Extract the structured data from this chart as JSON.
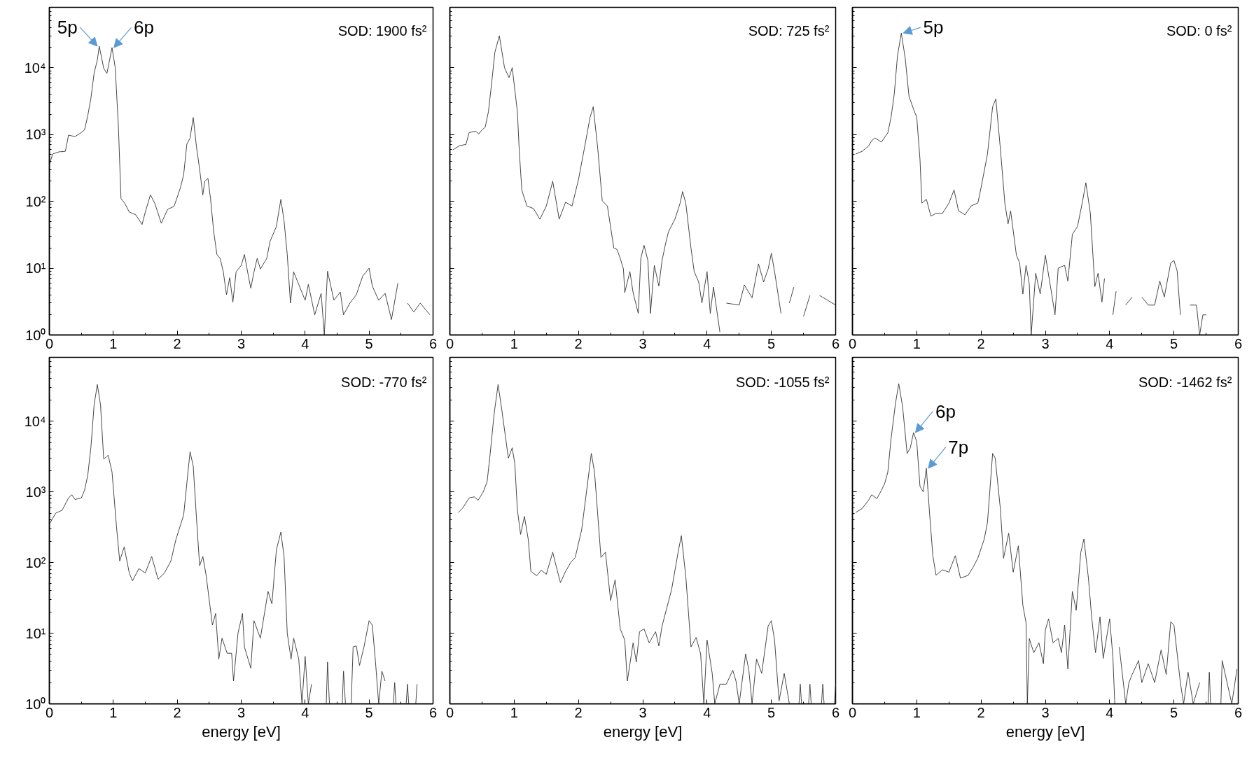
{
  "chart_data": [
    {
      "type": "line",
      "color": "#333333",
      "xlim": [
        0,
        6
      ],
      "ylim": [
        1,
        80000
      ],
      "log": "y",
      "xticks": [
        0,
        1,
        2,
        3,
        4,
        5,
        6
      ],
      "yticks": [
        {
          "value": 1,
          "label": "10⁰"
        },
        {
          "value": 10,
          "label": "10¹"
        },
        {
          "value": 100,
          "label": "10²"
        },
        {
          "value": 1000,
          "label": "10³"
        },
        {
          "value": 10000,
          "label": "10⁴"
        }
      ],
      "annotations": [
        "SOD: 1900 fs²",
        {
          "text": "5p",
          "x": 0.78,
          "y": 21000
        },
        {
          "text": "6p",
          "x": 0.98,
          "y": 20000
        }
      ],
      "x": [
        0,
        0.05,
        0.15,
        0.25,
        0.3,
        0.4,
        0.5,
        0.55,
        0.6,
        0.65,
        0.7,
        0.75,
        0.78,
        0.85,
        0.9,
        0.98,
        1.03,
        1.08,
        1.12,
        1.18,
        1.25,
        1.35,
        1.45,
        1.5,
        1.58,
        1.65,
        1.75,
        1.85,
        1.95,
        2.05,
        2.1,
        2.15,
        2.2,
        2.25,
        2.3,
        2.35,
        2.4,
        2.43,
        2.48,
        2.52,
        2.57,
        2.62,
        2.67,
        2.72,
        2.77,
        2.82,
        2.87,
        2.92,
        3.0,
        3.05,
        3.1,
        3.15,
        3.2,
        3.25,
        3.3,
        3.4,
        3.45,
        3.55,
        3.62,
        3.67,
        3.72,
        3.77,
        3.82,
        3.9,
        4.0,
        4.05,
        4.15,
        4.25,
        4.3,
        4.35,
        4.45,
        4.55,
        4.6,
        4.7,
        4.8,
        4.9,
        5.0,
        5.05,
        5.15,
        5.25,
        5.35,
        5.45,
        5.55,
        5.6,
        5.7,
        5.8,
        5.95
      ],
      "values": [
        350,
        510,
        550,
        560,
        980,
        930,
        1070,
        1170,
        1900,
        3500,
        8300,
        13000,
        21000,
        9800,
        8200,
        20000,
        10000,
        1300,
        110,
        93,
        69,
        63,
        45,
        69,
        125,
        93,
        47,
        76,
        84,
        160,
        250,
        720,
        880,
        1800,
        660,
        300,
        125,
        200,
        220,
        110,
        35,
        16,
        14,
        8.8,
        4,
        7.2,
        3.1,
        8.8,
        11,
        16,
        8.8,
        5,
        8.8,
        14,
        9.7,
        14,
        25,
        42,
        107,
        51,
        16,
        3,
        8.8,
        5.7,
        3.3,
        5.7,
        2,
        4.2,
        1,
        9,
        3.3,
        4.4,
        2,
        3,
        4,
        7.6,
        10,
        5.4,
        3.3,
        4.2,
        1.7,
        6,
        null,
        3,
        2.2,
        3,
        2
      ]
    },
    {
      "type": "line",
      "color": "#333333",
      "xlim": [
        0,
        6
      ],
      "ylim": [
        1,
        80000
      ],
      "log": "y",
      "tick_labels": "x",
      "xticks": [
        0,
        1,
        2,
        3,
        4,
        5,
        6
      ],
      "yticks": [
        1,
        10,
        100,
        1000,
        10000
      ],
      "annotations": [
        "SOD: 725 fs²"
      ],
      "x": [
        0.05,
        0.15,
        0.25,
        0.3,
        0.4,
        0.45,
        0.5,
        0.55,
        0.6,
        0.65,
        0.7,
        0.77,
        0.85,
        0.92,
        0.97,
        1.05,
        1.08,
        1.12,
        1.2,
        1.3,
        1.4,
        1.5,
        1.6,
        1.7,
        1.8,
        1.9,
        2.0,
        2.1,
        2.18,
        2.23,
        2.3,
        2.37,
        2.45,
        2.55,
        2.6,
        2.65,
        2.7,
        2.72,
        2.8,
        2.85,
        2.93,
        2.97,
        3.02,
        3.08,
        3.12,
        3.18,
        3.25,
        3.3,
        3.35,
        3.4,
        3.5,
        3.58,
        3.62,
        3.67,
        3.75,
        3.8,
        3.87,
        3.92,
        4.0,
        4.05,
        4.1,
        4.2,
        4.25,
        4.3,
        4.5,
        4.58,
        4.7,
        4.8,
        4.88,
        4.95,
        5.0,
        5.05,
        5.15,
        5.2,
        5.28,
        5.35,
        5.45,
        5.5,
        5.6,
        5.65,
        5.75,
        6.0
      ],
      "values": [
        590,
        680,
        710,
        1070,
        1120,
        1020,
        1170,
        1290,
        2200,
        5900,
        17000,
        30000,
        10000,
        7100,
        10000,
        2200,
        560,
        145,
        85,
        78,
        54,
        85,
        200,
        54,
        97,
        85,
        210,
        680,
        1800,
        2600,
        620,
        102,
        85,
        20,
        19,
        14,
        9.7,
        4.3,
        8.9,
        4.3,
        2.1,
        14,
        22,
        13,
        2.1,
        11,
        5.4,
        13,
        22,
        35,
        54,
        93,
        140,
        93,
        20,
        8.9,
        6.2,
        3,
        8.9,
        2.1,
        5.2,
        1.1,
        null,
        3,
        2.8,
        5.6,
        3.6,
        11.6,
        6.2,
        9.7,
        16.7,
        8.9,
        2.1,
        null,
        3,
        5.2,
        null,
        1.9,
        3.9,
        null,
        3.9,
        2.8
      ]
    },
    {
      "type": "line",
      "color": "#333333",
      "xlim": [
        0,
        6
      ],
      "ylim": [
        1,
        80000
      ],
      "log": "y",
      "tick_labels": "x",
      "xticks": [
        0,
        1,
        2,
        3,
        4,
        5,
        6
      ],
      "yticks": [
        1,
        10,
        100,
        1000,
        10000
      ],
      "annotations": [
        "SOD: 0 fs²",
        {
          "text": "5p",
          "x": 0.76,
          "y": 33000
        }
      ],
      "x": [
        0.05,
        0.15,
        0.25,
        0.3,
        0.35,
        0.45,
        0.55,
        0.6,
        0.65,
        0.7,
        0.76,
        0.82,
        0.88,
        0.95,
        1.0,
        1.05,
        1.08,
        1.15,
        1.22,
        1.3,
        1.4,
        1.5,
        1.58,
        1.65,
        1.75,
        1.85,
        1.95,
        2.0,
        2.1,
        2.18,
        2.23,
        2.3,
        2.37,
        2.42,
        2.46,
        2.55,
        2.6,
        2.65,
        2.7,
        2.75,
        2.78,
        2.85,
        2.92,
        3.0,
        3.08,
        3.15,
        3.2,
        3.3,
        3.35,
        3.42,
        3.5,
        3.58,
        3.63,
        3.7,
        3.77,
        3.82,
        3.88,
        3.92,
        4.0,
        4.05,
        4.1,
        4.18,
        4.25,
        4.35,
        4.45,
        4.5,
        4.6,
        4.7,
        4.78,
        4.85,
        4.95,
        5.0,
        5.05,
        5.1,
        5.15,
        5.25,
        5.35,
        5.4,
        5.45,
        5.5
      ],
      "values": [
        510,
        560,
        670,
        810,
        890,
        770,
        1060,
        1800,
        4000,
        15000,
        33000,
        14000,
        3700,
        2400,
        1800,
        430,
        94,
        107,
        60,
        66,
        66,
        94,
        148,
        72,
        63,
        86,
        94,
        160,
        510,
        2600,
        3400,
        620,
        94,
        46,
        72,
        15.6,
        12,
        4.1,
        11,
        5.8,
        1,
        8.4,
        4.1,
        15.6,
        5.3,
        2,
        10,
        11,
        6.4,
        32,
        42,
        102,
        190,
        66,
        5.3,
        8.4,
        3.1,
        7,
        null,
        2,
        4.5,
        null,
        2.8,
        3.7,
        null,
        3.7,
        2.8,
        2.8,
        6.4,
        3.7,
        12,
        13,
        9.1,
        2,
        null,
        2.8,
        2.8,
        1,
        2,
        2
      ]
    },
    {
      "type": "line",
      "color": "#333333",
      "xlim": [
        0,
        6
      ],
      "ylim": [
        1,
        80000
      ],
      "log": "y",
      "xlabel": "energy [eV]",
      "xticks": [
        0,
        1,
        2,
        3,
        4,
        5,
        6
      ],
      "yticks": [
        {
          "value": 1,
          "label": "10⁰"
        },
        {
          "value": 10,
          "label": "10¹"
        },
        {
          "value": 100,
          "label": "10²"
        },
        {
          "value": 1000,
          "label": "10³"
        },
        {
          "value": 10000,
          "label": "10⁴"
        }
      ],
      "annotations": [
        "SOD: -770 fs²"
      ],
      "x": [
        0,
        0.1,
        0.2,
        0.3,
        0.35,
        0.4,
        0.5,
        0.55,
        0.6,
        0.65,
        0.7,
        0.75,
        0.8,
        0.85,
        0.92,
        0.98,
        1.05,
        1.1,
        1.17,
        1.25,
        1.3,
        1.4,
        1.5,
        1.6,
        1.7,
        1.8,
        1.9,
        1.98,
        2.1,
        2.2,
        2.25,
        2.3,
        2.35,
        2.4,
        2.45,
        2.55,
        2.6,
        2.65,
        2.7,
        2.78,
        2.85,
        2.88,
        2.95,
        3.02,
        3.05,
        3.15,
        3.2,
        3.3,
        3.42,
        3.48,
        3.55,
        3.62,
        3.67,
        3.72,
        3.78,
        3.82,
        3.9,
        3.95,
        4.0,
        4.05,
        4.1,
        4.15,
        4.33,
        4.35,
        4.38,
        4.45,
        4.58,
        4.6,
        4.63,
        4.68,
        4.72,
        4.75,
        4.8,
        4.85,
        4.92,
        5.0,
        5.05,
        5.1,
        5.15,
        5.2,
        5.25,
        5.3,
        5.38,
        5.4,
        5.42,
        5.5,
        5.58,
        5.6,
        5.62,
        5.7,
        5.73,
        5.75
      ],
      "values": [
        350,
        500,
        550,
        820,
        910,
        780,
        820,
        1050,
        1700,
        4300,
        17000,
        33000,
        17000,
        2900,
        3300,
        1900,
        320,
        105,
        166,
        71,
        55,
        82,
        71,
        122,
        58,
        71,
        105,
        213,
        470,
        3700,
        2300,
        430,
        90,
        122,
        67,
        13,
        19,
        4.3,
        8.5,
        5.2,
        5.2,
        2.1,
        10,
        19,
        6.4,
        3.2,
        15,
        8.5,
        39,
        26,
        150,
        270,
        122,
        10,
        4.3,
        8.5,
        4.3,
        1,
        4.7,
        1,
        1.9,
        null,
        1,
        3.9,
        1,
        null,
        1,
        2.9,
        1,
        null,
        1,
        6.4,
        6.6,
        3.5,
        6.4,
        15,
        13,
        3.9,
        1,
        2.9,
        2.1,
        null,
        1,
        2,
        1,
        null,
        1,
        1.9,
        1,
        null,
        1,
        1.9
      ]
    },
    {
      "type": "line",
      "color": "#333333",
      "xlim": [
        0,
        6
      ],
      "ylim": [
        1,
        80000
      ],
      "log": "y",
      "tick_labels": "x",
      "xlabel": "energy [eV]",
      "xticks": [
        0,
        1,
        2,
        3,
        4,
        5,
        6
      ],
      "yticks": [
        1,
        10,
        100,
        1000,
        10000
      ],
      "annotations": [
        "SOD: -1055 fs²"
      ],
      "x": [
        0.13,
        0.2,
        0.3,
        0.38,
        0.44,
        0.52,
        0.58,
        0.62,
        0.69,
        0.75,
        0.81,
        0.91,
        0.97,
        1.01,
        1.05,
        1.1,
        1.16,
        1.22,
        1.26,
        1.35,
        1.42,
        1.5,
        1.6,
        1.65,
        1.72,
        1.8,
        1.88,
        1.95,
        2.05,
        2.12,
        2.2,
        2.25,
        2.35,
        2.42,
        2.5,
        2.57,
        2.65,
        2.72,
        2.76,
        2.85,
        2.9,
        2.95,
        3.02,
        3.1,
        3.2,
        3.25,
        3.3,
        3.4,
        3.45,
        3.55,
        3.6,
        3.67,
        3.75,
        3.83,
        3.9,
        3.95,
        4.0,
        4.08,
        4.12,
        4.2,
        4.3,
        4.4,
        4.45,
        4.5,
        4.6,
        4.65,
        4.7,
        4.77,
        4.85,
        4.95,
        5.0,
        5.05,
        5.12,
        5.2,
        5.28,
        5.35,
        5.43,
        5.45,
        5.47,
        5.5,
        5.58,
        5.6,
        5.62,
        5.7,
        5.78,
        5.8,
        5.82,
        5.9,
        5.98,
        6.0
      ],
      "values": [
        510,
        590,
        820,
        850,
        760,
        1000,
        1400,
        3000,
        13000,
        33000,
        14000,
        3000,
        4200,
        2500,
        560,
        250,
        450,
        210,
        75,
        65,
        78,
        68,
        140,
        91,
        52,
        75,
        100,
        118,
        290,
        920,
        3500,
        1900,
        118,
        140,
        29,
        57,
        11.5,
        8,
        2.1,
        7.3,
        3.9,
        10.5,
        11.5,
        7.3,
        10.5,
        6.6,
        12.6,
        28,
        42,
        140,
        240,
        63,
        6.4,
        8.7,
        5.1,
        1,
        8,
        2.7,
        1,
        1.9,
        1.9,
        3,
        2.1,
        1,
        5.1,
        3,
        1,
        4.3,
        2.7,
        12.6,
        15,
        8,
        1.1,
        2.7,
        1,
        null,
        1,
        1.9,
        1,
        null,
        1,
        1.9,
        1,
        null,
        1,
        1.9,
        1,
        null,
        1,
        1.9
      ]
    },
    {
      "type": "line",
      "color": "#333333",
      "xlim": [
        0,
        6
      ],
      "ylim": [
        1,
        80000
      ],
      "log": "y",
      "tick_labels": "x",
      "xlabel": "energy [eV]",
      "xticks": [
        0,
        1,
        2,
        3,
        4,
        5,
        6
      ],
      "yticks": [
        1,
        10,
        100,
        1000,
        10000
      ],
      "annotations": [
        "SOD: -1462 fs²",
        {
          "text": "6p",
          "x": 0.95,
          "y": 6900
        },
        {
          "text": "7p",
          "x": 1.15,
          "y": 2150
        }
      ],
      "x": [
        0.05,
        0.15,
        0.25,
        0.3,
        0.38,
        0.45,
        0.5,
        0.55,
        0.6,
        0.67,
        0.72,
        0.78,
        0.85,
        0.9,
        0.95,
        1.0,
        1.05,
        1.1,
        1.15,
        1.2,
        1.25,
        1.3,
        1.4,
        1.5,
        1.6,
        1.68,
        1.8,
        1.88,
        1.95,
        2.05,
        2.1,
        2.18,
        2.22,
        2.3,
        2.35,
        2.43,
        2.5,
        2.58,
        2.65,
        2.7,
        2.72,
        2.75,
        2.82,
        2.9,
        2.97,
        3.0,
        3.05,
        3.12,
        3.2,
        3.25,
        3.3,
        3.35,
        3.42,
        3.48,
        3.55,
        3.6,
        3.67,
        3.72,
        3.78,
        3.85,
        3.9,
        4.0,
        4.05,
        4.08,
        4.12,
        4.15,
        4.25,
        4.3,
        4.35,
        4.45,
        4.5,
        4.6,
        4.7,
        4.8,
        4.88,
        4.95,
        5.0,
        5.1,
        5.15,
        5.22,
        5.3,
        5.4,
        5.5,
        5.53,
        5.55,
        5.57,
        5.65,
        5.73,
        5.75,
        5.9,
        5.98
      ],
      "values": [
        510,
        580,
        760,
        910,
        800,
        1050,
        1300,
        1900,
        5600,
        18000,
        34000,
        16000,
        3500,
        4200,
        6900,
        5100,
        1200,
        1000,
        2150,
        490,
        125,
        66,
        79,
        73,
        125,
        60,
        66,
        87,
        115,
        215,
        370,
        3500,
        3000,
        580,
        115,
        260,
        73,
        172,
        25,
        14,
        1,
        8.4,
        5.3,
        7.3,
        3.7,
        11,
        16,
        7.3,
        8.4,
        5.3,
        13,
        3.1,
        39,
        21,
        137,
        215,
        60,
        17,
        5.3,
        17,
        4.4,
        16,
        4.7,
        1,
        null,
        6.4,
        1,
        2,
        2.6,
        4.1,
        2,
        3.7,
        2,
        5.8,
        2.6,
        14.5,
        13,
        2,
        1,
        2.8,
        1,
        2,
        null,
        1,
        2.8,
        1,
        null,
        1,
        4.1,
        1,
        3.1
      ]
    }
  ]
}
